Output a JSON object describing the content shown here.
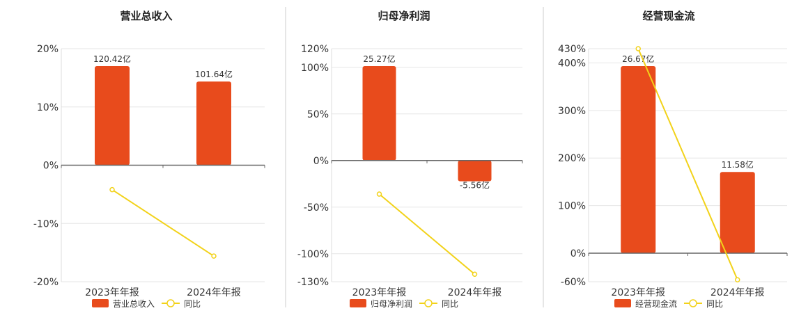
{
  "colors": {
    "bar": "#E84B1C",
    "line": "#F2D21A",
    "grid": "#E6E6E6",
    "axis": "#666666",
    "divider": "#CCCCCC"
  },
  "chart_data": [
    {
      "type": "bar",
      "title": "营业总收入",
      "categories": [
        "2023年年报",
        "2024年年报"
      ],
      "bar_values": [
        120.42,
        101.64
      ],
      "bar_labels": [
        "120.42亿",
        "101.64亿"
      ],
      "line_values": [
        -4.2,
        -15.6
      ],
      "series": [
        {
          "name": "营业总收入",
          "kind": "bar"
        },
        {
          "name": "同比",
          "kind": "line"
        }
      ],
      "ylim": [
        -20,
        20
      ],
      "yticks": [
        20,
        10,
        0,
        -10,
        -20
      ],
      "ytick_labels": [
        "20%",
        "10%",
        "0%",
        "-10%",
        "-20%"
      ],
      "legend": "bottom"
    },
    {
      "type": "bar",
      "title": "归母净利润",
      "categories": [
        "2023年年报",
        "2024年年报"
      ],
      "bar_values": [
        25.27,
        -5.56
      ],
      "bar_labels": [
        "25.27亿",
        "-5.56亿"
      ],
      "line_values": [
        -36,
        -122
      ],
      "series": [
        {
          "name": "归母净利润",
          "kind": "bar"
        },
        {
          "name": "同比",
          "kind": "line"
        }
      ],
      "ylim": [
        -130,
        120
      ],
      "yticks": [
        120,
        100,
        50,
        0,
        -50,
        -100,
        -130
      ],
      "ytick_labels": [
        "120%",
        "100%",
        "50%",
        "0%",
        "-50%",
        "-100%",
        "-130%"
      ],
      "legend": "bottom"
    },
    {
      "type": "bar",
      "title": "经营现金流",
      "categories": [
        "2023年年报",
        "2024年年报"
      ],
      "bar_values": [
        26.67,
        11.58
      ],
      "bar_labels": [
        "26.67亿",
        "11.58亿"
      ],
      "line_values": [
        430,
        -56
      ],
      "series": [
        {
          "name": "经营现金流",
          "kind": "bar"
        },
        {
          "name": "同比",
          "kind": "line"
        }
      ],
      "ylim": [
        -60,
        430
      ],
      "yticks": [
        430,
        400,
        300,
        200,
        100,
        0,
        -60
      ],
      "ytick_labels": [
        "430%",
        "400%",
        "300%",
        "200%",
        "100%",
        "0%",
        "-60%"
      ],
      "legend": "bottom"
    }
  ]
}
